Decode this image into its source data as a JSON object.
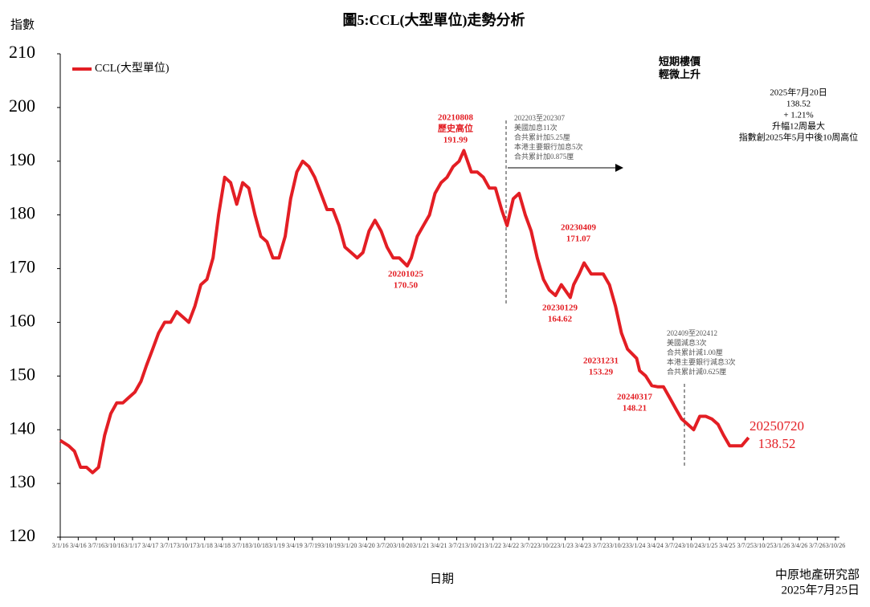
{
  "chart_data": {
    "type": "line",
    "title": "圖5:CCL(大型單位)走勢分析",
    "y_label": "指數",
    "x_label": "日期",
    "series": [
      {
        "name": "CCL(大型單位)",
        "color": "#e31e24",
        "x": [
          "3/1/16",
          "15/2/16",
          "15/3/16",
          "15/4/16",
          "15/5/16",
          "15/6/16",
          "15/7/16",
          "15/8/16",
          "15/9/16",
          "15/10/16",
          "15/11/16",
          "15/12/16",
          "15/1/17",
          "15/2/17",
          "15/3/17",
          "15/4/17",
          "15/5/17",
          "15/6/17",
          "15/7/17",
          "15/8/17",
          "15/9/17",
          "15/10/17",
          "15/11/17",
          "15/12/17",
          "15/1/18",
          "15/2/18",
          "15/3/18",
          "15/4/18",
          "15/5/18",
          "15/6/18",
          "15/7/18",
          "15/8/18",
          "15/9/18",
          "15/10/18",
          "15/11/18",
          "15/12/18",
          "15/1/19",
          "15/2/19",
          "15/3/19",
          "15/4/19",
          "15/5/19",
          "15/6/19",
          "15/7/19",
          "15/8/19",
          "15/9/19",
          "15/10/19",
          "15/11/19",
          "15/12/19",
          "15/1/20",
          "15/2/20",
          "15/3/20",
          "15/4/20",
          "15/5/20",
          "15/6/20",
          "15/7/20",
          "15/8/20",
          "15/9/20",
          "25/10/20",
          "15/11/20",
          "15/12/20",
          "15/1/21",
          "15/2/21",
          "15/3/21",
          "15/4/21",
          "15/5/21",
          "15/6/21",
          "15/7/21",
          "8/8/21",
          "15/9/21",
          "15/10/21",
          "15/11/21",
          "15/12/21",
          "15/1/22",
          "15/2/22",
          "15/3/22",
          "15/4/22",
          "15/5/22",
          "15/6/22",
          "15/7/22",
          "15/8/22",
          "15/9/22",
          "15/10/22",
          "15/11/22",
          "15/12/22",
          "29/1/23",
          "15/2/23",
          "15/3/23",
          "9/4/23",
          "15/5/23",
          "15/6/23",
          "15/7/23",
          "15/8/23",
          "15/9/23",
          "15/10/23",
          "15/11/23",
          "31/12/23",
          "15/1/24",
          "15/2/24",
          "17/3/24",
          "15/4/24",
          "15/5/24",
          "15/6/24",
          "15/7/24",
          "15/8/24",
          "15/9/24",
          "15/10/24",
          "15/11/24",
          "15/12/24",
          "15/1/25",
          "15/2/25",
          "15/3/25",
          "15/4/25",
          "15/5/25",
          "15/6/25",
          "20/7/25"
        ],
        "values": [
          138,
          137,
          136,
          133,
          133,
          132,
          133,
          139,
          143,
          145,
          145,
          146,
          147,
          149,
          152,
          155,
          158,
          160,
          160,
          162,
          161,
          160,
          163,
          167,
          168,
          172,
          180,
          187,
          186,
          182,
          186,
          185,
          180,
          176,
          175,
          172,
          172,
          176,
          183,
          188,
          190,
          189,
          187,
          184,
          181,
          181,
          178,
          174,
          173,
          172,
          173,
          177,
          179,
          177,
          174,
          172,
          172,
          170.5,
          172,
          176,
          178,
          180,
          184,
          186,
          187,
          189,
          190,
          191.99,
          188,
          188,
          187,
          185,
          185,
          181,
          178,
          183,
          184,
          180,
          177,
          172,
          168,
          166,
          165,
          167,
          164.62,
          167,
          169,
          171.07,
          169,
          169,
          169,
          167,
          163,
          158,
          155,
          153.29,
          151,
          150,
          148.21,
          148,
          148,
          146,
          144,
          142,
          141,
          140,
          142.5,
          142.5,
          142,
          141,
          139,
          137,
          137,
          137,
          138.52
        ]
      }
    ],
    "xlim": [
      "3/1/16",
      "3/10/26"
    ],
    "xticks": [
      "3/1/16",
      "3/4/16",
      "3/7/16",
      "3/10/16",
      "3/1/17",
      "3/4/17",
      "3/7/17",
      "3/10/17",
      "3/1/18",
      "3/4/18",
      "3/7/18",
      "3/10/18",
      "3/1/19",
      "3/4/19",
      "3/7/19",
      "3/10/19",
      "3/1/20",
      "3/4/20",
      "3/7/20",
      "3/10/20",
      "3/1/21",
      "3/4/21",
      "3/7/21",
      "3/10/21",
      "3/1/22",
      "3/4/22",
      "3/7/22",
      "3/10/22",
      "3/1/23",
      "3/4/23",
      "3/7/23",
      "3/10/23",
      "3/1/24",
      "3/4/24",
      "3/7/24",
      "3/10/24",
      "3/1/25",
      "3/4/25",
      "3/7/25",
      "3/10/25",
      "3/1/26",
      "3/4/26",
      "3/7/26",
      "3/10/26"
    ],
    "ylim": [
      120,
      210
    ],
    "yticks": [
      120,
      130,
      140,
      150,
      160,
      170,
      180,
      190,
      200,
      210
    ],
    "legend": "upper left",
    "annotations": [
      [
        "20210808",
        "歷史高位",
        "191.99"
      ],
      [
        "20201025",
        "170.50"
      ],
      [
        "20230409",
        "171.07"
      ],
      [
        "20230129",
        "164.62"
      ],
      [
        "20231231",
        "153.29"
      ],
      [
        "20240317",
        "148.21"
      ],
      [
        "20250720",
        "138.52"
      ]
    ],
    "notes": [
      [
        "短期樓價",
        "輕微上升"
      ],
      [
        "2025年7月20日",
        "138.52",
        "+ 1.21%",
        "升幅12周最大",
        "指數創2025年5月中後10周高位"
      ],
      [
        "202203至202307",
        "美國加息11次",
        "合共累計加5.25厘",
        "本港主要銀行加息5次",
        "合共累計加0.875厘"
      ],
      [
        "202409至202412",
        "美國減息3次",
        "合共累計減1.00厘",
        "本港主要銀行減息3次",
        "合共累計減0.625厘"
      ]
    ],
    "source": [
      "中原地產研究部",
      "2025年7月25日"
    ]
  }
}
